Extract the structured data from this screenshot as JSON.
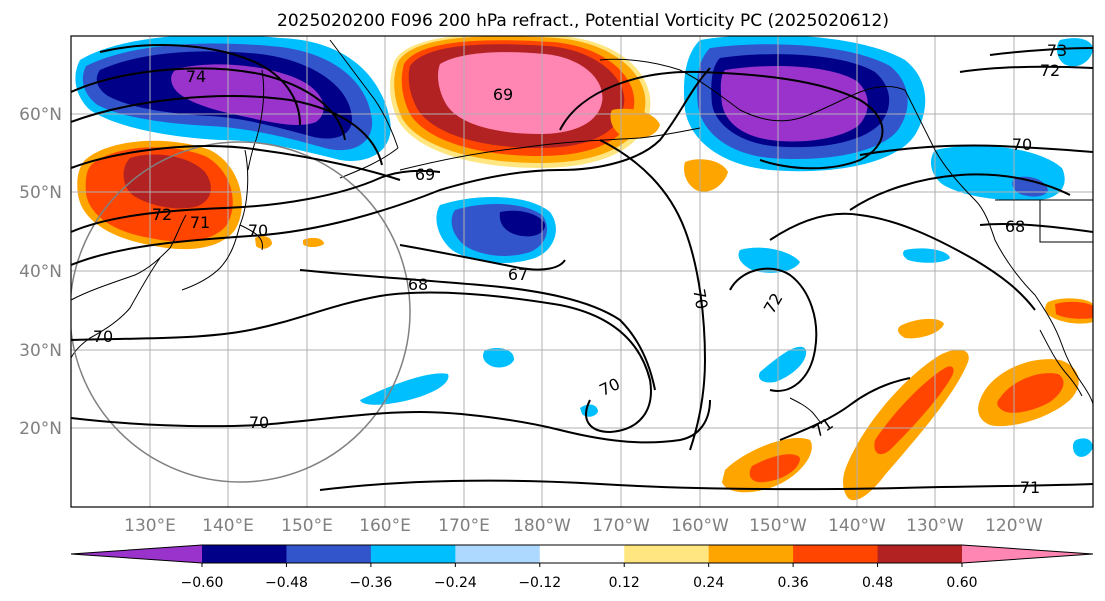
{
  "title": "2025020200 F096 200 hPa refract., Potential Vorticity PC (2025020612)",
  "map": {
    "lat_labels": [
      "60°N",
      "50°N",
      "40°N",
      "30°N",
      "20°N"
    ],
    "lon_labels": [
      "130°E",
      "140°E",
      "150°E",
      "160°E",
      "170°E",
      "180°W",
      "170°W",
      "160°W",
      "150°W",
      "140°W",
      "130°W",
      "120°W"
    ],
    "lat_range": [
      10,
      70
    ],
    "lon_range": [
      120,
      250
    ],
    "grid": true
  },
  "contour_labels": [
    "73",
    "72",
    "74",
    "70",
    "69",
    "70",
    "71",
    "72",
    "70",
    "68",
    "67",
    "69",
    "68",
    "70",
    "72",
    "70",
    "70",
    "71",
    "71"
  ],
  "colorbar": {
    "ticks": [
      "−0.60",
      "−0.48",
      "−0.36",
      "−0.24",
      "−0.12",
      "0.12",
      "0.24",
      "0.36",
      "0.48",
      "0.60"
    ],
    "colors": [
      "#9933cc",
      "#000088",
      "#3355cc",
      "#00bfff",
      "#add8ff",
      "#ffffff",
      "#ffe680",
      "#ffa500",
      "#ff4500",
      "#b22222",
      "#ff85b3"
    ]
  }
}
